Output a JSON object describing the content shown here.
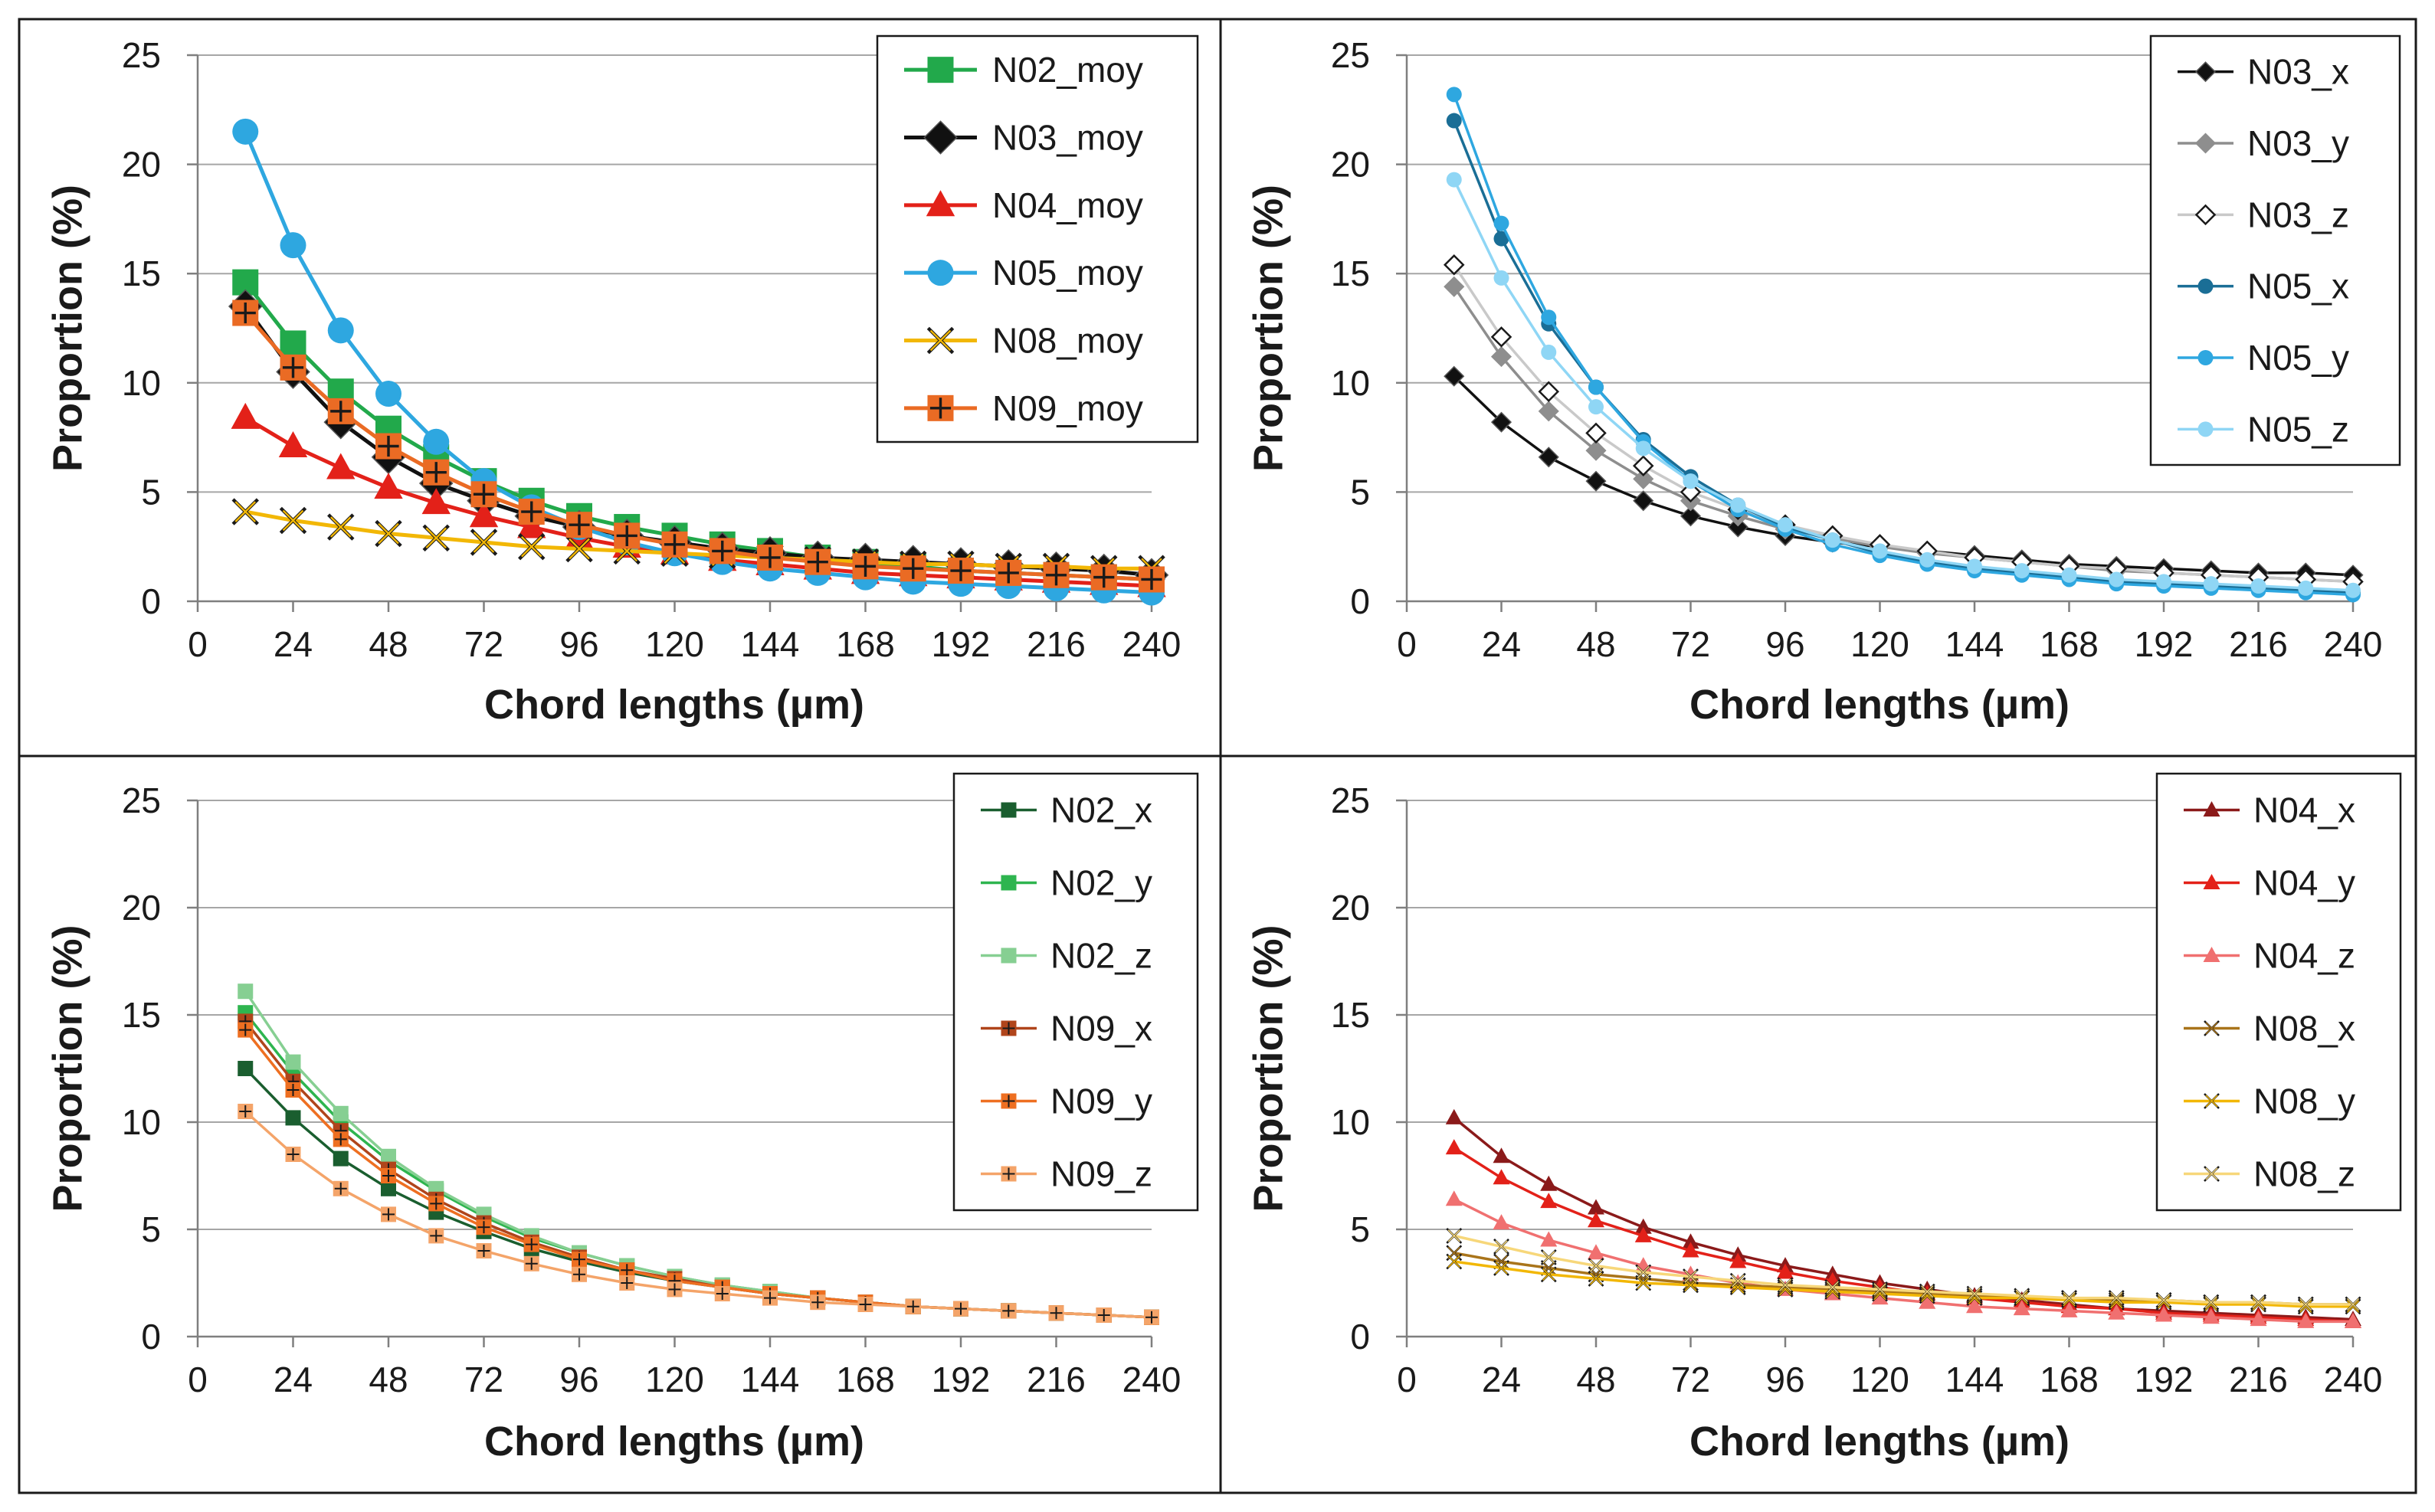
{
  "chart_data": [
    {
      "type": "line",
      "position": "top-left",
      "xlabel": "Chord lengths (µm)",
      "ylabel": "Proportion (%)",
      "xlim": [
        0,
        240
      ],
      "ylim": [
        0,
        25
      ],
      "xticks": [
        0,
        24,
        48,
        72,
        96,
        120,
        144,
        168,
        192,
        216,
        240
      ],
      "yticks": [
        0,
        5,
        10,
        15,
        20,
        25
      ],
      "grid": "horizontal",
      "legend_position": "top-right",
      "x": [
        12,
        24,
        36,
        48,
        60,
        72,
        84,
        96,
        108,
        120,
        132,
        144,
        156,
        168,
        180,
        192,
        204,
        216,
        228,
        240
      ],
      "series": [
        {
          "name": "N02_moy",
          "color": "#22a94b",
          "marker": "square",
          "size": "large",
          "values": [
            14.6,
            11.8,
            9.6,
            7.9,
            6.6,
            5.5,
            4.6,
            3.9,
            3.4,
            3.0,
            2.6,
            2.3,
            2.0,
            1.8,
            1.6,
            1.4,
            1.3,
            1.2,
            1.1,
            1.0
          ]
        },
        {
          "name": "N03_moy",
          "color": "#111111",
          "marker": "diamond",
          "size": "large",
          "values": [
            13.5,
            10.5,
            8.2,
            6.6,
            5.4,
            4.6,
            3.9,
            3.4,
            3.0,
            2.7,
            2.4,
            2.2,
            2.0,
            1.9,
            1.8,
            1.7,
            1.6,
            1.5,
            1.4,
            1.2
          ]
        },
        {
          "name": "N04_moy",
          "color": "#e32119",
          "marker": "triangle",
          "size": "large",
          "values": [
            8.4,
            7.1,
            6.1,
            5.2,
            4.5,
            3.9,
            3.4,
            2.9,
            2.5,
            2.2,
            1.9,
            1.7,
            1.5,
            1.3,
            1.2,
            1.1,
            1.0,
            0.9,
            0.8,
            0.7
          ]
        },
        {
          "name": "N05_moy",
          "color": "#2ea7e0",
          "marker": "circle",
          "size": "large",
          "values": [
            21.5,
            16.3,
            12.4,
            9.5,
            7.3,
            5.5,
            4.3,
            3.4,
            2.7,
            2.2,
            1.8,
            1.5,
            1.3,
            1.1,
            0.9,
            0.8,
            0.7,
            0.6,
            0.5,
            0.4
          ]
        },
        {
          "name": "N08_moy",
          "color": "#f2b705",
          "marker": "x",
          "size": "large",
          "values": [
            4.1,
            3.7,
            3.4,
            3.1,
            2.9,
            2.7,
            2.5,
            2.4,
            2.3,
            2.2,
            2.1,
            2.0,
            1.9,
            1.8,
            1.7,
            1.7,
            1.6,
            1.6,
            1.5,
            1.5
          ]
        },
        {
          "name": "N09_moy",
          "color": "#ea6b24",
          "marker": "plus-square",
          "size": "large",
          "values": [
            13.2,
            10.7,
            8.7,
            7.1,
            5.9,
            4.9,
            4.1,
            3.5,
            3.0,
            2.6,
            2.3,
            2.0,
            1.8,
            1.6,
            1.5,
            1.4,
            1.3,
            1.2,
            1.1,
            1.0
          ]
        }
      ]
    },
    {
      "type": "line",
      "position": "top-right",
      "xlabel": "Chord lengths (µm)",
      "ylabel": "Proportion (%)",
      "xlim": [
        0,
        240
      ],
      "ylim": [
        0,
        25
      ],
      "xticks": [
        0,
        24,
        48,
        72,
        96,
        120,
        144,
        168,
        192,
        216,
        240
      ],
      "yticks": [
        0,
        5,
        10,
        15,
        20,
        25
      ],
      "grid": "horizontal",
      "legend_position": "top-right",
      "x": [
        12,
        24,
        36,
        48,
        60,
        72,
        84,
        96,
        108,
        120,
        132,
        144,
        156,
        168,
        180,
        192,
        204,
        216,
        228,
        240
      ],
      "series": [
        {
          "name": "N03_x",
          "color": "#111111",
          "marker": "diamond",
          "size": "small",
          "values": [
            10.3,
            8.2,
            6.6,
            5.5,
            4.6,
            3.9,
            3.4,
            3.0,
            2.7,
            2.5,
            2.3,
            2.1,
            1.9,
            1.7,
            1.6,
            1.5,
            1.4,
            1.3,
            1.3,
            1.2
          ]
        },
        {
          "name": "N03_y",
          "color": "#8e8e8e",
          "marker": "diamond",
          "size": "small",
          "values": [
            14.4,
            11.2,
            8.7,
            6.9,
            5.6,
            4.6,
            3.9,
            3.3,
            2.9,
            2.5,
            2.2,
            2.0,
            1.8,
            1.6,
            1.4,
            1.3,
            1.2,
            1.1,
            1.0,
            0.9
          ]
        },
        {
          "name": "N03_z",
          "color": "#c9c9c9",
          "marker": "diamond-open",
          "size": "small",
          "values": [
            15.4,
            12.1,
            9.6,
            7.7,
            6.2,
            5.0,
            4.2,
            3.5,
            3.0,
            2.6,
            2.3,
            2.0,
            1.8,
            1.6,
            1.5,
            1.3,
            1.2,
            1.1,
            1.0,
            0.9
          ]
        },
        {
          "name": "N05_x",
          "color": "#1a6e96",
          "marker": "circle",
          "size": "small",
          "values": [
            22.0,
            16.6,
            12.7,
            9.8,
            7.4,
            5.7,
            4.4,
            3.4,
            2.8,
            2.2,
            1.8,
            1.5,
            1.3,
            1.1,
            0.9,
            0.8,
            0.7,
            0.6,
            0.5,
            0.4
          ]
        },
        {
          "name": "N05_y",
          "color": "#2ea7e0",
          "marker": "circle",
          "size": "small",
          "values": [
            23.2,
            17.3,
            13.0,
            9.8,
            7.3,
            5.5,
            4.2,
            3.3,
            2.6,
            2.1,
            1.7,
            1.4,
            1.2,
            1.0,
            0.8,
            0.7,
            0.6,
            0.5,
            0.4,
            0.3
          ]
        },
        {
          "name": "N05_z",
          "color": "#8fd6f5",
          "marker": "circle",
          "size": "small",
          "values": [
            19.3,
            14.8,
            11.4,
            8.9,
            7.0,
            5.5,
            4.4,
            3.5,
            2.8,
            2.3,
            1.9,
            1.6,
            1.4,
            1.2,
            1.0,
            0.9,
            0.8,
            0.7,
            0.6,
            0.5
          ]
        }
      ]
    },
    {
      "type": "line",
      "position": "bottom-left",
      "xlabel": "Chord lengths (µm)",
      "ylabel": "Proportion (%)",
      "xlim": [
        0,
        240
      ],
      "ylim": [
        0,
        25
      ],
      "xticks": [
        0,
        24,
        48,
        72,
        96,
        120,
        144,
        168,
        192,
        216,
        240
      ],
      "yticks": [
        0,
        5,
        10,
        15,
        20,
        25
      ],
      "grid": "horizontal",
      "legend_position": "top-right",
      "x": [
        12,
        24,
        36,
        48,
        60,
        72,
        84,
        96,
        108,
        120,
        132,
        144,
        156,
        168,
        180,
        192,
        204,
        216,
        228,
        240
      ],
      "series": [
        {
          "name": "N02_x",
          "color": "#1a5e2f",
          "marker": "square",
          "size": "small",
          "values": [
            12.5,
            10.2,
            8.3,
            6.9,
            5.8,
            4.9,
            4.1,
            3.5,
            3.0,
            2.6,
            2.3,
            2.0,
            1.8,
            1.6,
            1.4,
            1.3,
            1.2,
            1.1,
            1.0,
            0.9
          ]
        },
        {
          "name": "N02_y",
          "color": "#2eb54f",
          "marker": "square",
          "size": "small",
          "values": [
            15.1,
            12.3,
            10.0,
            8.2,
            6.8,
            5.6,
            4.6,
            3.9,
            3.3,
            2.8,
            2.4,
            2.1,
            1.8,
            1.6,
            1.4,
            1.3,
            1.2,
            1.1,
            1.0,
            0.9
          ]
        },
        {
          "name": "N02_z",
          "color": "#86cf92",
          "marker": "square",
          "size": "small",
          "values": [
            16.1,
            12.8,
            10.4,
            8.4,
            6.9,
            5.7,
            4.7,
            3.9,
            3.3,
            2.8,
            2.4,
            2.1,
            1.8,
            1.6,
            1.4,
            1.3,
            1.2,
            1.1,
            1.0,
            0.9
          ]
        },
        {
          "name": "N09_x",
          "color": "#b0451b",
          "marker": "plus-square",
          "size": "small",
          "values": [
            14.7,
            11.9,
            9.6,
            7.8,
            6.4,
            5.3,
            4.4,
            3.7,
            3.1,
            2.7,
            2.3,
            2.0,
            1.8,
            1.6,
            1.4,
            1.3,
            1.2,
            1.1,
            1.0,
            0.9
          ]
        },
        {
          "name": "N09_y",
          "color": "#ee6f21",
          "marker": "plus-square",
          "size": "small",
          "values": [
            14.3,
            11.5,
            9.2,
            7.5,
            6.2,
            5.1,
            4.3,
            3.6,
            3.1,
            2.6,
            2.3,
            2.0,
            1.8,
            1.6,
            1.4,
            1.3,
            1.2,
            1.1,
            1.0,
            0.9
          ]
        },
        {
          "name": "N09_z",
          "color": "#f4a469",
          "marker": "plus-square",
          "size": "small",
          "values": [
            10.5,
            8.5,
            6.9,
            5.7,
            4.7,
            4.0,
            3.4,
            2.9,
            2.5,
            2.2,
            2.0,
            1.8,
            1.6,
            1.5,
            1.4,
            1.3,
            1.2,
            1.1,
            1.0,
            0.9
          ]
        }
      ]
    },
    {
      "type": "line",
      "position": "bottom-right",
      "xlabel": "Chord lengths (µm)",
      "ylabel": "Proportion (%)",
      "xlim": [
        0,
        240
      ],
      "ylim": [
        0,
        25
      ],
      "xticks": [
        0,
        24,
        48,
        72,
        96,
        120,
        144,
        168,
        192,
        216,
        240
      ],
      "yticks": [
        0,
        5,
        10,
        15,
        20,
        25
      ],
      "grid": "horizontal",
      "legend_position": "top-right",
      "x": [
        12,
        24,
        36,
        48,
        60,
        72,
        84,
        96,
        108,
        120,
        132,
        144,
        156,
        168,
        180,
        192,
        204,
        216,
        228,
        240
      ],
      "series": [
        {
          "name": "N04_x",
          "color": "#8b1a1a",
          "marker": "triangle",
          "size": "small",
          "values": [
            10.2,
            8.4,
            7.1,
            6.0,
            5.1,
            4.4,
            3.8,
            3.3,
            2.9,
            2.5,
            2.2,
            1.9,
            1.7,
            1.5,
            1.3,
            1.2,
            1.1,
            1.0,
            0.9,
            0.8
          ]
        },
        {
          "name": "N04_y",
          "color": "#e32119",
          "marker": "triangle",
          "size": "small",
          "values": [
            8.8,
            7.4,
            6.3,
            5.4,
            4.7,
            4.0,
            3.5,
            3.0,
            2.6,
            2.3,
            2.0,
            1.8,
            1.6,
            1.4,
            1.3,
            1.1,
            1.0,
            0.9,
            0.8,
            0.7
          ]
        },
        {
          "name": "N04_z",
          "color": "#f07070",
          "marker": "triangle",
          "size": "small",
          "values": [
            6.4,
            5.3,
            4.5,
            3.9,
            3.3,
            2.9,
            2.5,
            2.2,
            2.0,
            1.8,
            1.6,
            1.4,
            1.3,
            1.2,
            1.1,
            1.0,
            0.9,
            0.8,
            0.7,
            0.7
          ]
        },
        {
          "name": "N08_x",
          "color": "#a9741a",
          "marker": "x",
          "size": "small",
          "values": [
            3.9,
            3.5,
            3.2,
            2.9,
            2.7,
            2.5,
            2.4,
            2.3,
            2.2,
            2.1,
            2.0,
            1.9,
            1.8,
            1.8,
            1.7,
            1.7,
            1.6,
            1.6,
            1.5,
            1.5
          ]
        },
        {
          "name": "N08_y",
          "color": "#f2b705",
          "marker": "x",
          "size": "small",
          "values": [
            3.5,
            3.2,
            2.9,
            2.7,
            2.5,
            2.4,
            2.3,
            2.2,
            2.1,
            2.0,
            1.9,
            1.8,
            1.8,
            1.7,
            1.6,
            1.6,
            1.5,
            1.5,
            1.4,
            1.4
          ]
        },
        {
          "name": "N08_z",
          "color": "#f7d77a",
          "marker": "x",
          "size": "small",
          "values": [
            4.7,
            4.2,
            3.7,
            3.3,
            3.0,
            2.8,
            2.6,
            2.4,
            2.3,
            2.2,
            2.1,
            2.0,
            1.9,
            1.8,
            1.8,
            1.7,
            1.6,
            1.6,
            1.5,
            1.5
          ]
        }
      ]
    }
  ]
}
